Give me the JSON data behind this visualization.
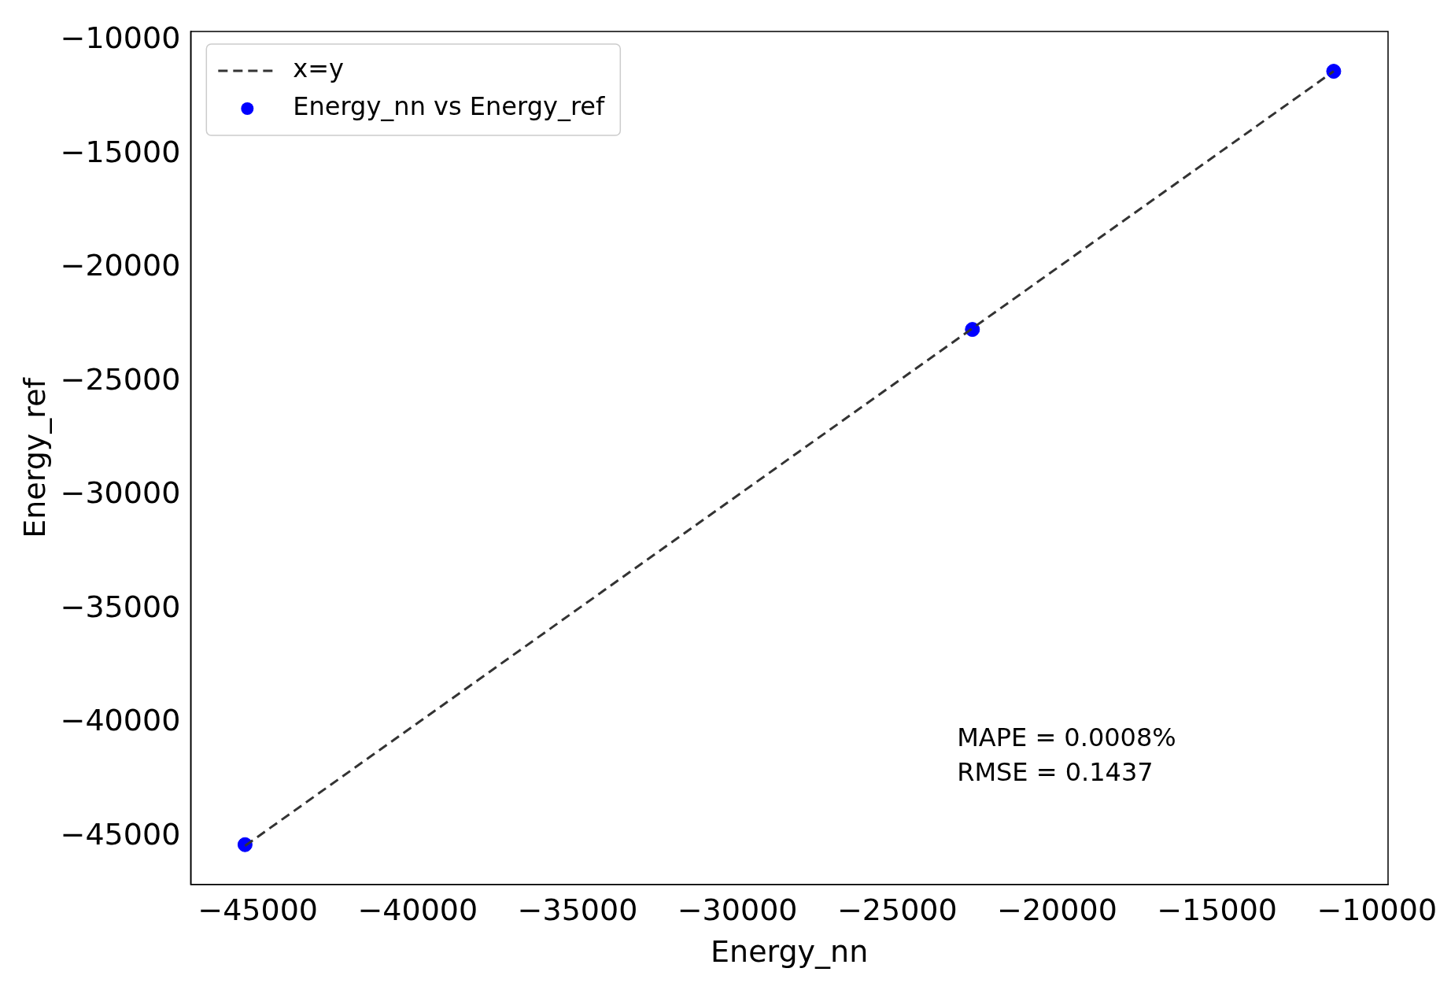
{
  "chart_data": {
    "type": "scatter",
    "xlabel": "Energy_nn",
    "ylabel": "Energy_ref",
    "xlim": [
      -47100,
      -9650
    ],
    "ylim": [
      -47100,
      -9600
    ],
    "xticks": [
      -45000,
      -40000,
      -35000,
      -30000,
      -25000,
      -20000,
      -15000,
      -10000
    ],
    "yticks": [
      -45000,
      -40000,
      -35000,
      -30000,
      -25000,
      -20000,
      -15000,
      -10000
    ],
    "series": [
      {
        "name": "x=y",
        "type": "line",
        "color": "#333333",
        "line_style": "dashed",
        "marker": "none",
        "x": [
          -45400,
          -11350
        ],
        "values": [
          -45400,
          -11350
        ]
      },
      {
        "name": "Energy_nn vs Energy_ref",
        "type": "scatter",
        "color": "#0000ff",
        "marker": "circle",
        "x": [
          -45400,
          -22650,
          -11350
        ],
        "values": [
          -45350,
          -22700,
          -11350
        ]
      }
    ],
    "annotations": [
      "MAPE = 0.0008%",
      "RMSE = 0.1437"
    ],
    "legend": "top left",
    "grid": false
  }
}
